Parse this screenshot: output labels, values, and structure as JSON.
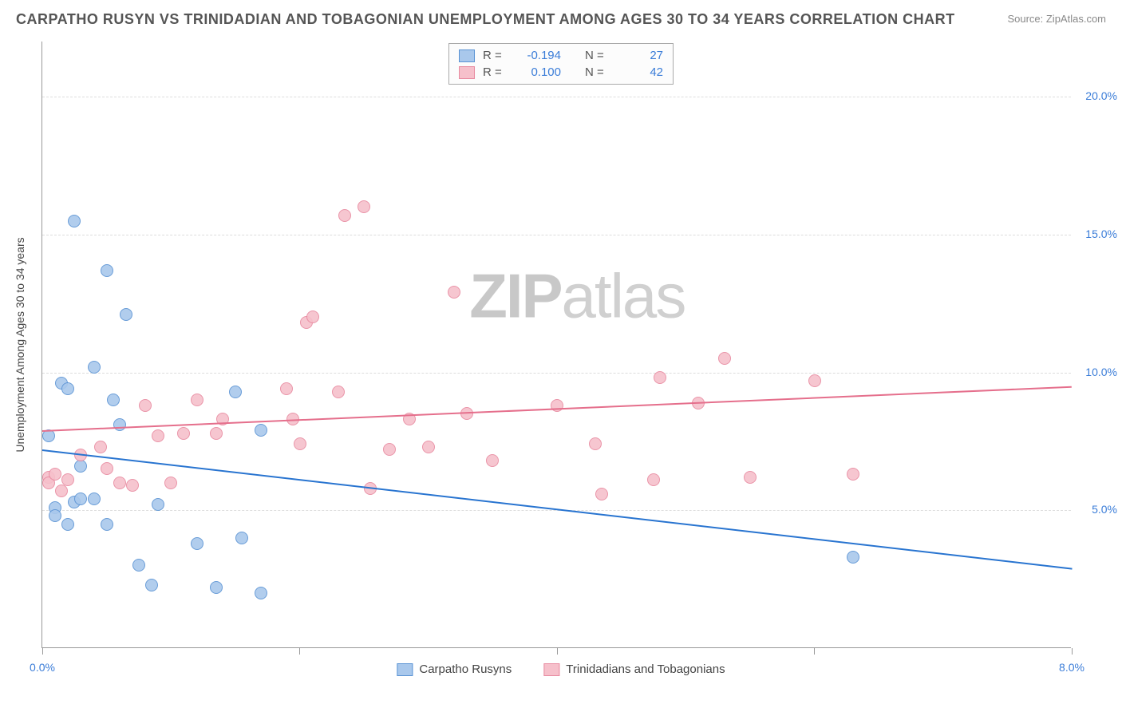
{
  "title": "CARPATHO RUSYN VS TRINIDADIAN AND TOBAGONIAN UNEMPLOYMENT AMONG AGES 30 TO 34 YEARS CORRELATION CHART",
  "source": "Source: ZipAtlas.com",
  "watermark_bold": "ZIP",
  "watermark_light": "atlas",
  "y_axis_title": "Unemployment Among Ages 30 to 34 years",
  "chart": {
    "type": "scatter",
    "background_color": "#ffffff",
    "grid_color": "#dddddd",
    "axis_color": "#999999",
    "xlim": [
      0,
      8
    ],
    "ylim": [
      0,
      22
    ],
    "x_ticks": [
      0,
      2,
      4,
      6,
      8
    ],
    "x_tick_labels": [
      "0.0%",
      "",
      "",
      "",
      "8.0%"
    ],
    "y_ticks": [
      5,
      10,
      15,
      20
    ],
    "y_tick_labels": [
      "5.0%",
      "10.0%",
      "15.0%",
      "20.0%"
    ],
    "tick_label_color": "#3b7dd8",
    "tick_label_fontsize": 14,
    "marker_radius": 8,
    "marker_fill_opacity": 0.35,
    "marker_stroke_width": 1.2,
    "series": [
      {
        "name": "Carpatho Rusyns",
        "color_fill": "#a9c8ec",
        "color_stroke": "#5a93d4",
        "line_color": "#2874d0",
        "R": "-0.194",
        "N": "27",
        "trend": {
          "x1": 0.0,
          "y1": 7.2,
          "x2": 8.0,
          "y2": 2.9
        },
        "points": [
          [
            0.05,
            7.7
          ],
          [
            0.1,
            5.1
          ],
          [
            0.1,
            4.8
          ],
          [
            0.15,
            9.6
          ],
          [
            0.2,
            4.5
          ],
          [
            0.2,
            9.4
          ],
          [
            0.25,
            5.3
          ],
          [
            0.25,
            15.5
          ],
          [
            0.3,
            5.4
          ],
          [
            0.3,
            6.6
          ],
          [
            0.4,
            5.4
          ],
          [
            0.4,
            10.2
          ],
          [
            0.5,
            13.7
          ],
          [
            0.5,
            4.5
          ],
          [
            0.55,
            9.0
          ],
          [
            0.6,
            8.1
          ],
          [
            0.65,
            12.1
          ],
          [
            0.75,
            3.0
          ],
          [
            0.85,
            2.3
          ],
          [
            0.9,
            5.2
          ],
          [
            1.2,
            3.8
          ],
          [
            1.35,
            2.2
          ],
          [
            1.5,
            9.3
          ],
          [
            1.55,
            4.0
          ],
          [
            1.7,
            7.9
          ],
          [
            1.7,
            2.0
          ],
          [
            6.3,
            3.3
          ]
        ]
      },
      {
        "name": "Trinidadians and Tobagonians",
        "color_fill": "#f6c0cb",
        "color_stroke": "#e88aa0",
        "line_color": "#e56f8c",
        "R": "0.100",
        "N": "42",
        "trend": {
          "x1": 0.0,
          "y1": 7.9,
          "x2": 8.0,
          "y2": 9.5
        },
        "points": [
          [
            0.05,
            6.2
          ],
          [
            0.05,
            6.0
          ],
          [
            0.1,
            6.3
          ],
          [
            0.15,
            5.7
          ],
          [
            0.2,
            6.1
          ],
          [
            0.3,
            7.0
          ],
          [
            0.45,
            7.3
          ],
          [
            0.5,
            6.5
          ],
          [
            0.6,
            6.0
          ],
          [
            0.7,
            5.9
          ],
          [
            0.8,
            8.8
          ],
          [
            0.9,
            7.7
          ],
          [
            1.0,
            6.0
          ],
          [
            1.1,
            7.8
          ],
          [
            1.2,
            9.0
          ],
          [
            1.35,
            7.8
          ],
          [
            1.4,
            8.3
          ],
          [
            1.9,
            9.4
          ],
          [
            1.95,
            8.3
          ],
          [
            2.0,
            7.4
          ],
          [
            2.05,
            11.8
          ],
          [
            2.1,
            12.0
          ],
          [
            2.3,
            9.3
          ],
          [
            2.35,
            15.7
          ],
          [
            2.5,
            16.0
          ],
          [
            2.55,
            5.8
          ],
          [
            2.7,
            7.2
          ],
          [
            2.85,
            8.3
          ],
          [
            3.0,
            7.3
          ],
          [
            3.2,
            12.9
          ],
          [
            3.3,
            8.5
          ],
          [
            3.5,
            6.8
          ],
          [
            4.0,
            8.8
          ],
          [
            4.3,
            7.4
          ],
          [
            4.35,
            5.6
          ],
          [
            4.75,
            6.1
          ],
          [
            4.8,
            9.8
          ],
          [
            5.1,
            8.9
          ],
          [
            5.3,
            10.5
          ],
          [
            5.5,
            6.2
          ],
          [
            6.0,
            9.7
          ],
          [
            6.3,
            6.3
          ]
        ]
      }
    ]
  },
  "legend_top_labels": {
    "R": "R =",
    "N": "N ="
  },
  "legend_bottom": [
    {
      "label": "Carpatho Rusyns",
      "fill": "#a9c8ec",
      "stroke": "#5a93d4"
    },
    {
      "label": "Trinidadians and Tobagonians",
      "fill": "#f6c0cb",
      "stroke": "#e88aa0"
    }
  ]
}
